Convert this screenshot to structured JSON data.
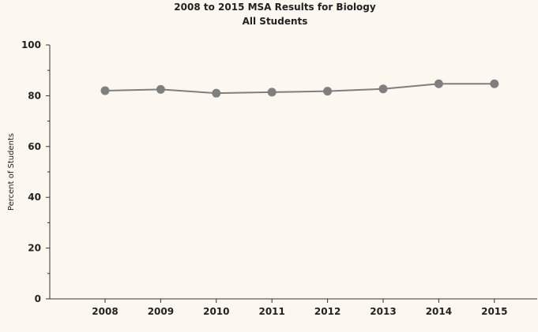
{
  "chart_data": {
    "type": "line",
    "title": "2008 to 2015 MSA Results for Biology",
    "subtitle": "All Students",
    "xlabel": "",
    "ylabel": "Percent of Students",
    "categories": [
      "2008",
      "2009",
      "2010",
      "2011",
      "2012",
      "2013",
      "2014",
      "2015"
    ],
    "series": [
      {
        "name": "All Students",
        "values": [
          82.0,
          82.5,
          81.0,
          81.4,
          81.8,
          82.7,
          84.7,
          84.7
        ]
      }
    ],
    "ylim": [
      0,
      100
    ],
    "yticks": [
      0,
      20,
      40,
      60,
      80,
      100
    ],
    "yticks_minor": [
      10,
      30,
      50,
      70,
      90
    ],
    "yticklabels": [
      "0",
      "20",
      "40",
      "60",
      "80",
      "100"
    ],
    "grid": false,
    "legend": "none",
    "colors": {
      "background": "#fcf8f0",
      "line": "#7f7f7f",
      "marker": "#7f7f7f",
      "axis": "#333333",
      "text": "#222222"
    }
  }
}
